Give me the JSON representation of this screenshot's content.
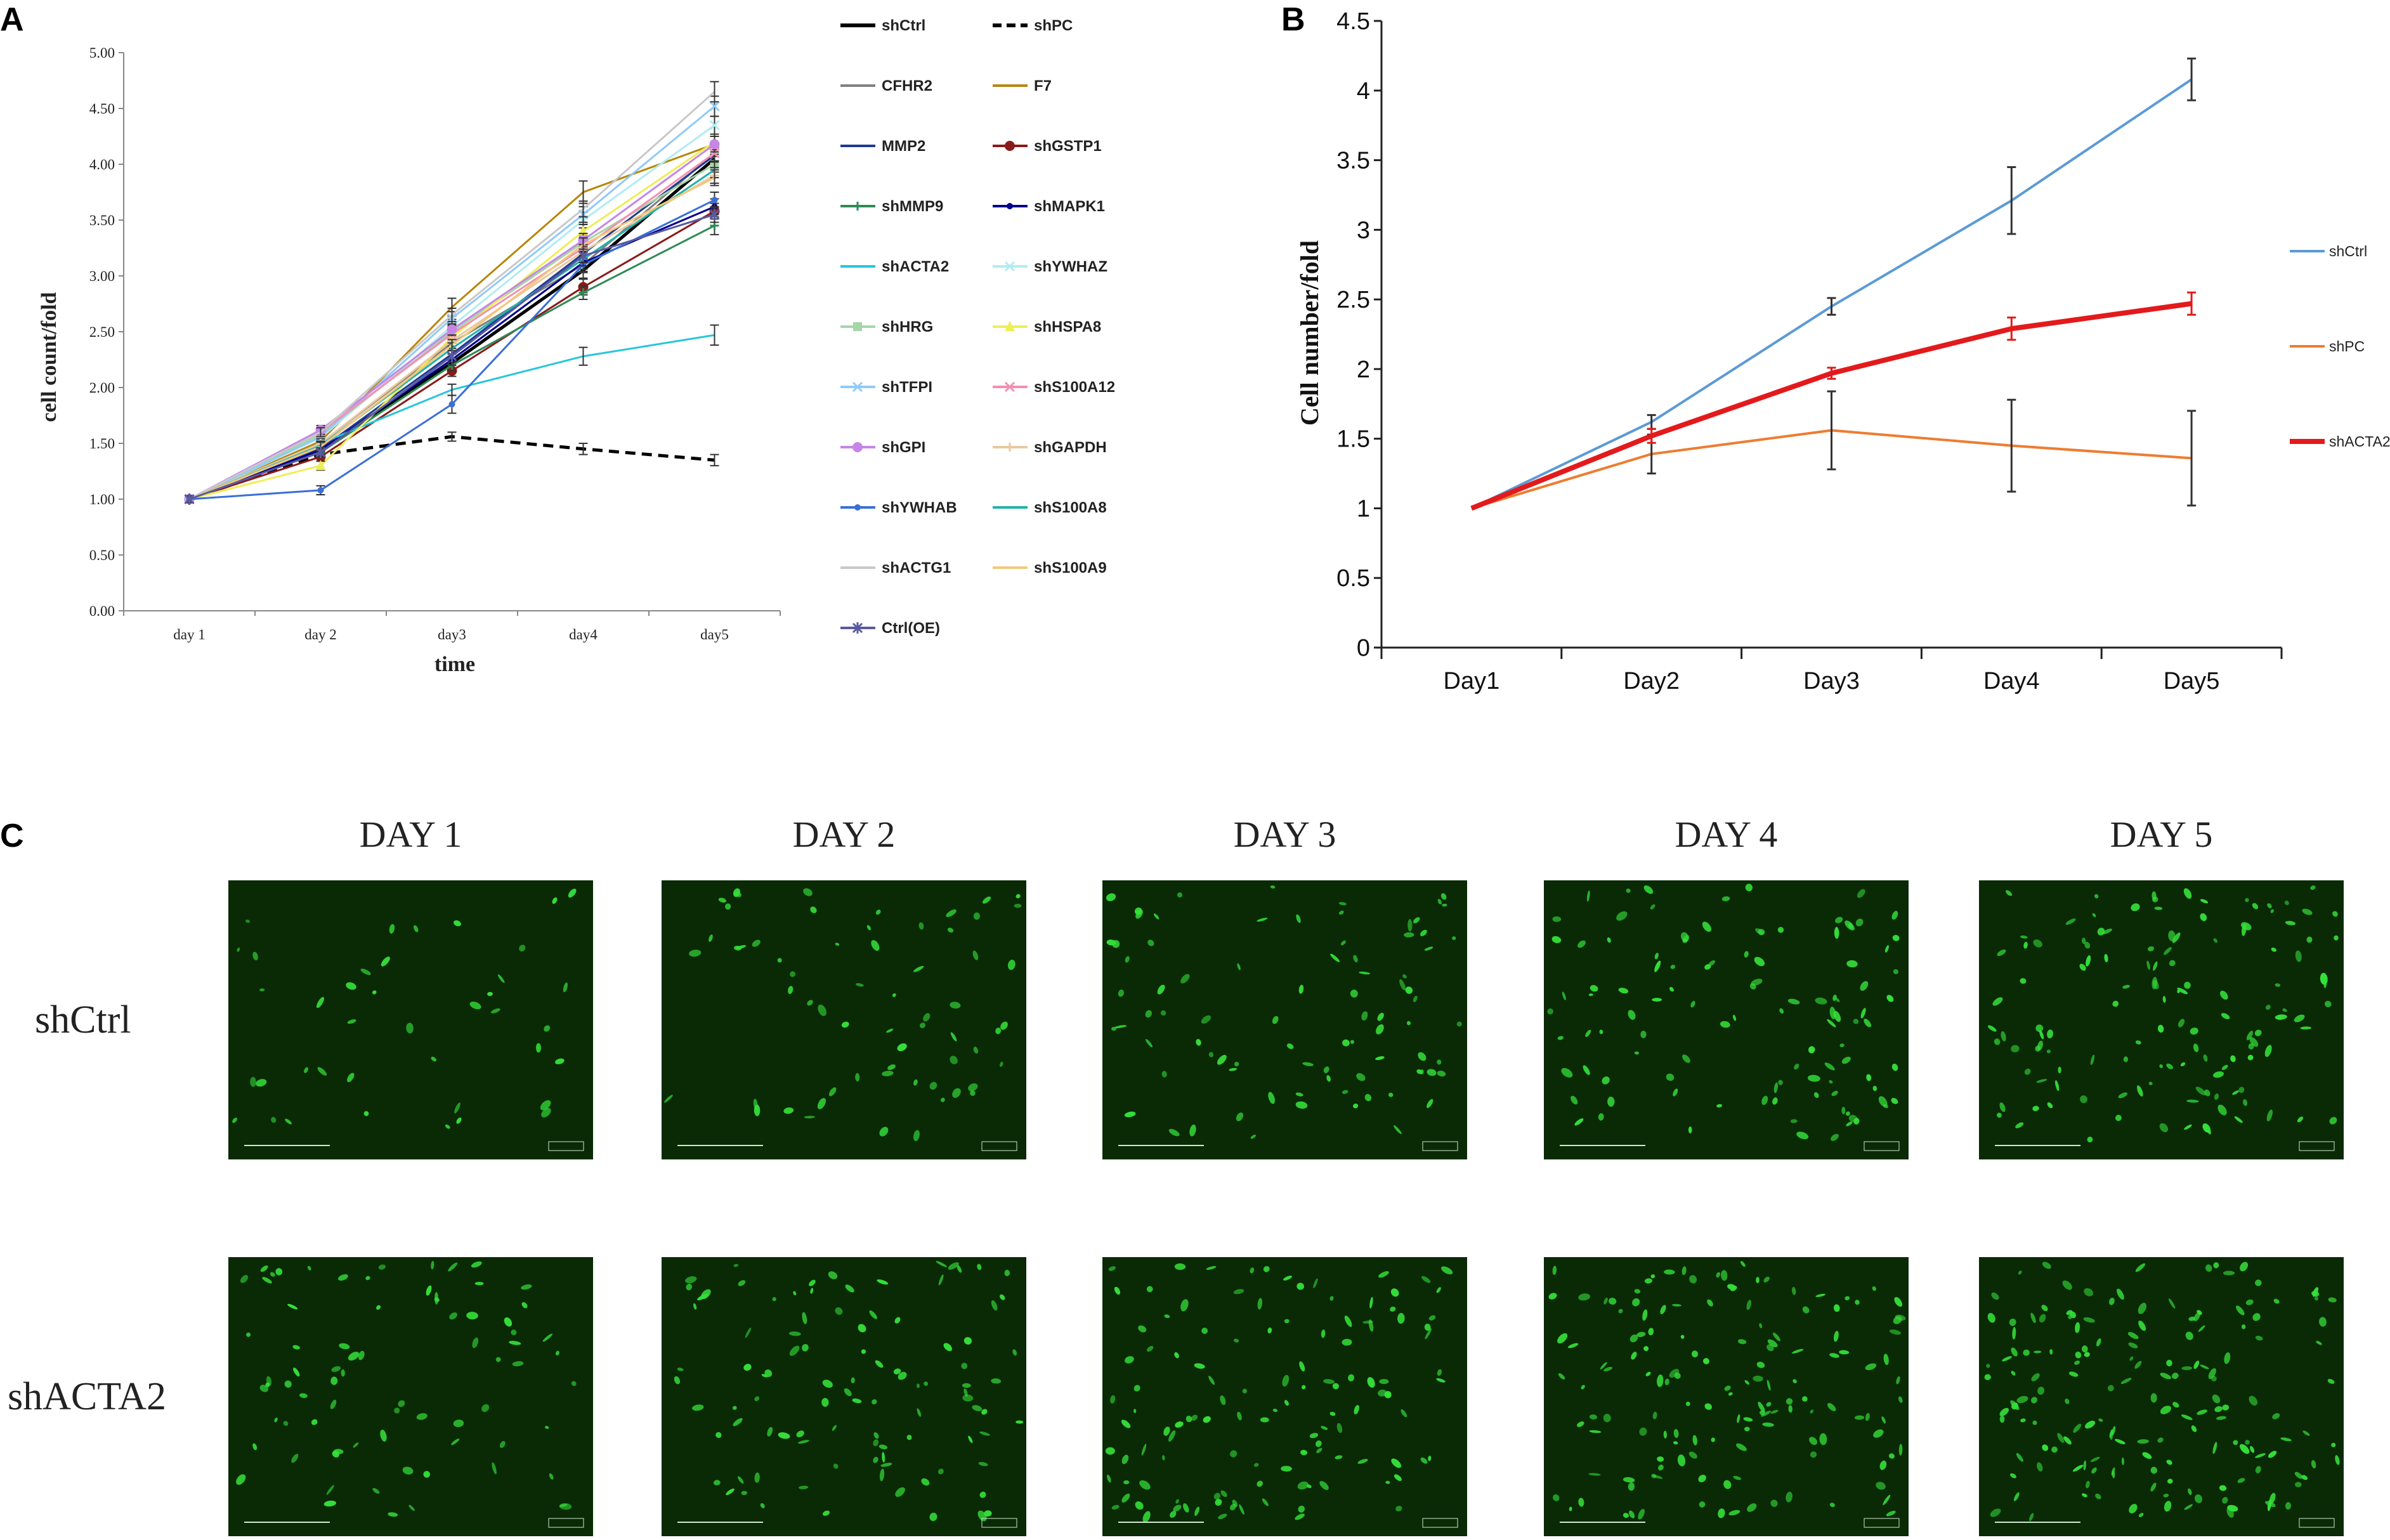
{
  "panels": {
    "a": "A",
    "b": "B",
    "c": "C"
  },
  "chart_data": [
    {
      "panel": "A",
      "type": "line",
      "xlabel": "time",
      "ylabel": "cell count/fold",
      "ylim": [
        0,
        5
      ],
      "categories": [
        "day 1",
        "day 2",
        "day3",
        "day4",
        "day5"
      ],
      "ytick_labels": [
        "0.00",
        "0.50",
        "1.00",
        "1.50",
        "2.00",
        "2.50",
        "3.00",
        "3.50",
        "4.00",
        "4.50",
        "5.00"
      ],
      "grid": false,
      "legend_position": "right",
      "series": [
        {
          "name": "shCtrl",
          "color": "#000000",
          "dash": "solid",
          "marker": "none",
          "values": [
            1.0,
            1.45,
            2.22,
            3.05,
            4.05
          ],
          "errors": [
            0.03,
            0.04,
            0.05,
            0.07,
            0.08
          ]
        },
        {
          "name": "shPC",
          "color": "#000000",
          "dash": "dashed",
          "marker": "none",
          "values": [
            1.0,
            1.4,
            1.56,
            1.45,
            1.35
          ],
          "errors": [
            0.03,
            0.04,
            0.04,
            0.05,
            0.05
          ]
        },
        {
          "name": "CFHR2",
          "color": "#808080",
          "dash": "solid",
          "marker": "none",
          "values": [
            1.0,
            1.5,
            2.4,
            3.1,
            4.1
          ],
          "errors": [
            0.03,
            0.04,
            0.05,
            0.06,
            0.07
          ]
        },
        {
          "name": "F7",
          "color": "#B8860B",
          "dash": "solid",
          "marker": "none",
          "values": [
            1.0,
            1.52,
            2.72,
            3.75,
            4.18
          ],
          "errors": [
            0.03,
            0.04,
            0.08,
            0.1,
            0.09
          ]
        },
        {
          "name": "MMP2",
          "color": "#1F3A93",
          "dash": "solid",
          "marker": "none",
          "values": [
            1.0,
            1.45,
            2.3,
            3.2,
            4.08
          ],
          "errors": [
            0.03,
            0.04,
            0.05,
            0.06,
            0.07
          ]
        },
        {
          "name": "shGSTP1",
          "color": "#8B1A1A",
          "dash": "solid",
          "marker": "circle",
          "values": [
            1.0,
            1.38,
            2.15,
            2.9,
            3.58
          ],
          "errors": [
            0.03,
            0.04,
            0.05,
            0.07,
            0.07
          ]
        },
        {
          "name": "shMMP9",
          "color": "#2E8B57",
          "dash": "solid",
          "marker": "plus",
          "values": [
            1.0,
            1.42,
            2.2,
            2.85,
            3.45
          ],
          "errors": [
            0.03,
            0.04,
            0.05,
            0.06,
            0.08
          ]
        },
        {
          "name": "shMAPK1",
          "color": "#00008B",
          "dash": "solid",
          "marker": "dot",
          "values": [
            1.0,
            1.44,
            2.25,
            3.12,
            3.62
          ],
          "errors": [
            0.03,
            0.04,
            0.05,
            0.06,
            0.07
          ]
        },
        {
          "name": "shACTA2",
          "color": "#26C6DA",
          "dash": "solid",
          "marker": "none",
          "values": [
            1.0,
            1.5,
            1.98,
            2.28,
            2.47
          ],
          "errors": [
            0.03,
            0.05,
            0.05,
            0.08,
            0.09
          ]
        },
        {
          "name": "shYWHAZ",
          "color": "#B2EBF2",
          "dash": "solid",
          "marker": "x",
          "values": [
            1.0,
            1.55,
            2.55,
            3.5,
            4.35
          ],
          "errors": [
            0.03,
            0.04,
            0.06,
            0.07,
            0.08
          ]
        },
        {
          "name": "shHRG",
          "color": "#A5D6A7",
          "dash": "solid",
          "marker": "square",
          "values": [
            1.0,
            1.58,
            2.5,
            3.3,
            4.0
          ],
          "errors": [
            0.03,
            0.04,
            0.05,
            0.06,
            0.07
          ]
        },
        {
          "name": "shHSPA8",
          "color": "#EEEE55",
          "dash": "solid",
          "marker": "triangle",
          "values": [
            1.0,
            1.3,
            2.45,
            3.4,
            4.2
          ],
          "errors": [
            0.03,
            0.04,
            0.05,
            0.06,
            0.07
          ]
        },
        {
          "name": "shTFPI",
          "color": "#90CAF9",
          "dash": "solid",
          "marker": "x",
          "values": [
            1.0,
            1.56,
            2.62,
            3.55,
            4.52
          ],
          "errors": [
            0.03,
            0.04,
            0.06,
            0.07,
            0.09
          ]
        },
        {
          "name": "shS100A12",
          "color": "#F48FB1",
          "dash": "solid",
          "marker": "x",
          "values": [
            1.0,
            1.6,
            2.48,
            3.25,
            4.1
          ],
          "errors": [
            0.03,
            0.04,
            0.05,
            0.06,
            0.07
          ]
        },
        {
          "name": "shGPI",
          "color": "#C586E8",
          "dash": "solid",
          "marker": "circle",
          "values": [
            1.0,
            1.62,
            2.52,
            3.32,
            4.18
          ],
          "errors": [
            0.03,
            0.04,
            0.05,
            0.06,
            0.07
          ]
        },
        {
          "name": "shGAPDH",
          "color": "#E8C9A0",
          "dash": "solid",
          "marker": "plus",
          "values": [
            1.0,
            1.5,
            2.42,
            3.22,
            3.9
          ],
          "errors": [
            0.03,
            0.04,
            0.05,
            0.06,
            0.07
          ]
        },
        {
          "name": "shYWHAB",
          "color": "#3A6FD8",
          "dash": "solid",
          "marker": "dot",
          "values": [
            1.0,
            1.08,
            1.85,
            3.1,
            3.68
          ],
          "errors": [
            0.03,
            0.04,
            0.08,
            0.07,
            0.07
          ]
        },
        {
          "name": "shS100A8",
          "color": "#20B2AA",
          "dash": "solid",
          "marker": "none",
          "values": [
            1.0,
            1.48,
            2.35,
            3.15,
            3.95
          ],
          "errors": [
            0.03,
            0.04,
            0.05,
            0.06,
            0.07
          ]
        },
        {
          "name": "shACTG1",
          "color": "#C8C8C8",
          "dash": "solid",
          "marker": "none",
          "values": [
            1.0,
            1.6,
            2.65,
            3.6,
            4.65
          ],
          "errors": [
            0.03,
            0.04,
            0.06,
            0.07,
            0.09
          ]
        },
        {
          "name": "shS100A9",
          "color": "#F5C77A",
          "dash": "solid",
          "marker": "none",
          "values": [
            1.0,
            1.47,
            2.38,
            3.28,
            3.88
          ],
          "errors": [
            0.03,
            0.04,
            0.05,
            0.06,
            0.07
          ]
        },
        {
          "name": "Ctrl(OE)",
          "color": "#5A5AA0",
          "dash": "solid",
          "marker": "star",
          "values": [
            1.0,
            1.42,
            2.28,
            3.18,
            3.55
          ],
          "errors": [
            0.03,
            0.04,
            0.05,
            0.06,
            0.07
          ]
        }
      ]
    },
    {
      "panel": "B",
      "type": "line",
      "xlabel": "",
      "ylabel": "Cell number/fold",
      "ylim": [
        0,
        4.5
      ],
      "categories": [
        "Day1",
        "Day2",
        "Day3",
        "Day4",
        "Day5"
      ],
      "ytick_labels": [
        "0",
        "0.5",
        "1",
        "1.5",
        "2",
        "2.5",
        "3",
        "3.5",
        "4",
        "4.5"
      ],
      "grid": false,
      "legend_position": "right",
      "series": [
        {
          "name": "shCtrl",
          "color": "#5B9BD5",
          "width": 4,
          "values": [
            1.0,
            1.62,
            2.45,
            3.21,
            4.08
          ],
          "errors": [
            0,
            0.05,
            0.06,
            0.24,
            0.15
          ]
        },
        {
          "name": "shPC",
          "color": "#ED7D31",
          "width": 4,
          "values": [
            1.0,
            1.39,
            1.56,
            1.45,
            1.36
          ],
          "errors": [
            0,
            0.14,
            0.28,
            0.33,
            0.34
          ]
        },
        {
          "name": "shACTA2",
          "color": "#E31A1C",
          "width": 8,
          "values": [
            1.0,
            1.52,
            1.97,
            2.29,
            2.47
          ],
          "errors": [
            0,
            0.05,
            0.04,
            0.08,
            0.08
          ]
        }
      ]
    }
  ],
  "panel_c": {
    "days": [
      "DAY 1",
      "DAY 2",
      "DAY 3",
      "DAY 4",
      "DAY 5"
    ],
    "rows": [
      "shCtrl",
      "shACTA2"
    ],
    "image_color": "#0A2A06",
    "cell_color": "#35E03A"
  }
}
